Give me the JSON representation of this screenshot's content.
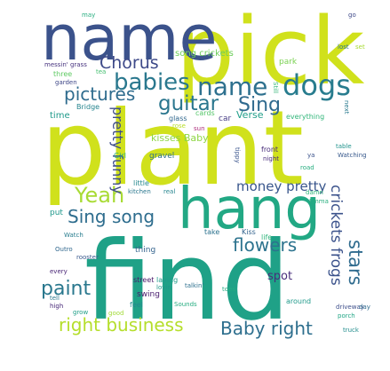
{
  "words": [
    {
      "text": "pick",
      "color": "#d0e11c"
    },
    {
      "text": "plant",
      "color": "#d0e11c"
    },
    {
      "text": "find",
      "color": "#1fa187"
    },
    {
      "text": "name",
      "color": "#3b528b"
    },
    {
      "text": "hang",
      "color": "#22a884"
    },
    {
      "text": "babies",
      "color": "#2a788e"
    },
    {
      "text": "name",
      "color": "#2d708e"
    },
    {
      "text": "dogs",
      "color": "#287c8e"
    },
    {
      "text": "guitar",
      "color": "#2a768e"
    },
    {
      "text": "Sing",
      "color": "#306a8e"
    },
    {
      "text": "Chorus",
      "color": "#3e4a89"
    },
    {
      "text": "pictures",
      "color": "#2f6c8e"
    },
    {
      "text": "Yeah",
      "color": "#a8db34"
    },
    {
      "text": "Sing song",
      "color": "#2e6d8e"
    },
    {
      "text": "paint",
      "color": "#2a788e"
    },
    {
      "text": "pretty funny",
      "color": "#3e4c8a"
    },
    {
      "text": "kisses Baby",
      "color": "#8ed645"
    },
    {
      "text": "money pretty",
      "color": "#39568c"
    },
    {
      "text": "flowers",
      "color": "#2c738e"
    },
    {
      "text": "crickets frogs",
      "color": "#3b528b"
    },
    {
      "text": "stars",
      "color": "#2f6b8e"
    },
    {
      "text": "spot",
      "color": "#472d7b"
    },
    {
      "text": "right business",
      "color": "#b5de2b"
    },
    {
      "text": "Baby right",
      "color": "#2e6f8e"
    },
    {
      "text": "song crickets",
      "color": "#6ccd5a"
    },
    {
      "text": "park",
      "color": "#7ad151"
    },
    {
      "text": "messin' grass",
      "color": "#46327e"
    },
    {
      "text": "tea",
      "color": "#44bf70"
    },
    {
      "text": "three",
      "color": "#5ec962"
    },
    {
      "text": "garden",
      "color": "#3f4788"
    },
    {
      "text": "Bridge",
      "color": "#25848e"
    },
    {
      "text": "time",
      "color": "#1f9a8a"
    },
    {
      "text": "glass",
      "color": "#31688e"
    },
    {
      "text": "cards",
      "color": "#54c568"
    },
    {
      "text": "car",
      "color": "#443a83"
    },
    {
      "text": "Verse",
      "color": "#1f9e89"
    },
    {
      "text": "everything",
      "color": "#32b67a"
    },
    {
      "text": "rose",
      "color": "#b8de29"
    },
    {
      "text": "sun",
      "color": "#ad2d7b"
    },
    {
      "text": "Girl",
      "color": "#26ad81"
    },
    {
      "text": "gravel",
      "color": "#2d718e"
    },
    {
      "text": "front",
      "color": "#472c7a"
    },
    {
      "text": "night",
      "color": "#472a7a"
    },
    {
      "text": "road",
      "color": "#28ae80"
    },
    {
      "text": "table",
      "color": "#20938c"
    },
    {
      "text": "Watching",
      "color": "#38598c"
    },
    {
      "text": "little",
      "color": "#24878e"
    },
    {
      "text": "kitchen",
      "color": "#2a778e"
    },
    {
      "text": "real",
      "color": "#25848e"
    },
    {
      "text": "damn",
      "color": "#31b57b"
    },
    {
      "text": "I'mma",
      "color": "#29af7f"
    },
    {
      "text": "put",
      "color": "#1f988b"
    },
    {
      "text": "Watch",
      "color": "#287d8e"
    },
    {
      "text": "take",
      "color": "#2c728e"
    },
    {
      "text": "Kiss",
      "color": "#33638d"
    },
    {
      "text": "life",
      "color": "#31b57b"
    },
    {
      "text": "thing",
      "color": "#33638d"
    },
    {
      "text": "swing",
      "color": "#481b6d"
    },
    {
      "text": "Outro",
      "color": "#31688e"
    },
    {
      "text": "rooster",
      "color": "#38588c"
    },
    {
      "text": "every",
      "color": "#482475"
    },
    {
      "text": "street",
      "color": "#48186a"
    },
    {
      "text": "laying",
      "color": "#1f9a8a"
    },
    {
      "text": "lovin",
      "color": "#1f978b"
    },
    {
      "text": "talkin'",
      "color": "#2d708e"
    },
    {
      "text": "toes",
      "color": "#25ab82"
    },
    {
      "text": "tell",
      "color": "#2a788e"
    },
    {
      "text": "high",
      "color": "#482878"
    },
    {
      "text": "feel",
      "color": "#23898e"
    },
    {
      "text": "Sounds",
      "color": "#26ad81"
    },
    {
      "text": "around",
      "color": "#1f9a8a"
    },
    {
      "text": "driveway",
      "color": "#3d4e8a"
    },
    {
      "text": "porch",
      "color": "#21a685"
    },
    {
      "text": "grow",
      "color": "#1f9f88"
    },
    {
      "text": "good",
      "color": "#a2da37"
    },
    {
      "text": "truck",
      "color": "#228d8d"
    },
    {
      "text": "may",
      "color": "#28ae80"
    },
    {
      "text": "go",
      "color": "#3e4989"
    },
    {
      "text": "lost",
      "color": "#2a788e"
    },
    {
      "text": "set",
      "color": "#a8db34"
    },
    {
      "text": "Still",
      "color": "#35b779"
    },
    {
      "text": "next",
      "color": "#29798e"
    },
    {
      "text": "tippy",
      "color": "#3a548c"
    },
    {
      "text": "ya",
      "color": "#3b528b"
    },
    {
      "text": "day",
      "color": "#2f6b8e"
    }
  ]
}
